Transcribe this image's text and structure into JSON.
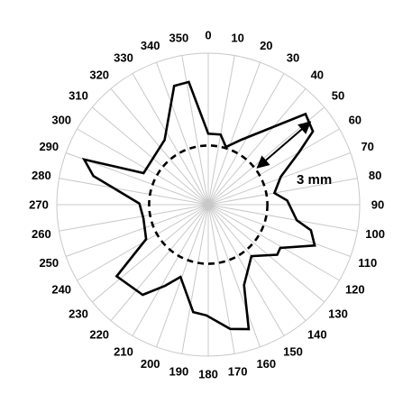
{
  "chart_data": {
    "type": "radar",
    "angle_unit": "degrees",
    "angle_ticks": [
      0,
      10,
      20,
      30,
      40,
      50,
      60,
      70,
      80,
      90,
      100,
      110,
      120,
      130,
      140,
      150,
      160,
      170,
      180,
      190,
      200,
      210,
      220,
      230,
      240,
      250,
      260,
      270,
      280,
      290,
      300,
      310,
      320,
      330,
      340,
      350
    ],
    "radius_max": 6.4,
    "grid": true,
    "series": [
      {
        "points": [
          {
            "angle": -16,
            "r": 5.22
          },
          {
            "angle": -9,
            "r": 5.25
          },
          {
            "angle": 0,
            "r": 3.0
          },
          {
            "angle": 10,
            "r": 3.01
          },
          {
            "angle": 17,
            "r": 2.55
          },
          {
            "angle": 27,
            "r": 3.08
          },
          {
            "angle": 47,
            "r": 5.62
          },
          {
            "angle": 55,
            "r": 5.4
          },
          {
            "angle": 60,
            "r": 4.43
          },
          {
            "angle": 69,
            "r": 3.28
          },
          {
            "angle": 80,
            "r": 2.84
          },
          {
            "angle": 87,
            "r": 3.34
          },
          {
            "angle": 100,
            "r": 3.8
          },
          {
            "angle": 104,
            "r": 4.47
          },
          {
            "angle": 111,
            "r": 4.82
          },
          {
            "angle": 121,
            "r": 3.55
          },
          {
            "angle": 126,
            "r": 3.6
          },
          {
            "angle": 140,
            "r": 2.84
          },
          {
            "angle": 156,
            "r": 3.72
          },
          {
            "angle": 162,
            "r": 5.53
          },
          {
            "angle": 170,
            "r": 5.33
          },
          {
            "angle": 181,
            "r": 4.68
          },
          {
            "angle": 188,
            "r": 4.58
          },
          {
            "angle": 201,
            "r": 3.27
          },
          {
            "angle": 208,
            "r": 3.88
          },
          {
            "angle": 216,
            "r": 4.71
          },
          {
            "angle": 232,
            "r": 4.91
          },
          {
            "angle": 241,
            "r": 3.0
          },
          {
            "angle": 258,
            "r": 2.8
          },
          {
            "angle": 271,
            "r": 2.91
          },
          {
            "angle": 284,
            "r": 5.0
          },
          {
            "angle": 290,
            "r": 5.58
          },
          {
            "angle": 296,
            "r": 3.04
          },
          {
            "angle": 326,
            "r": 3.3
          }
        ]
      }
    ],
    "reference_circle": {
      "r": 2.5,
      "style": "dashed"
    },
    "annotation": {
      "label": "3 mm",
      "arrow_from": {
        "angle": 53,
        "r": 2.6
      },
      "arrow_to": {
        "angle": 51,
        "r": 5.55
      }
    }
  }
}
